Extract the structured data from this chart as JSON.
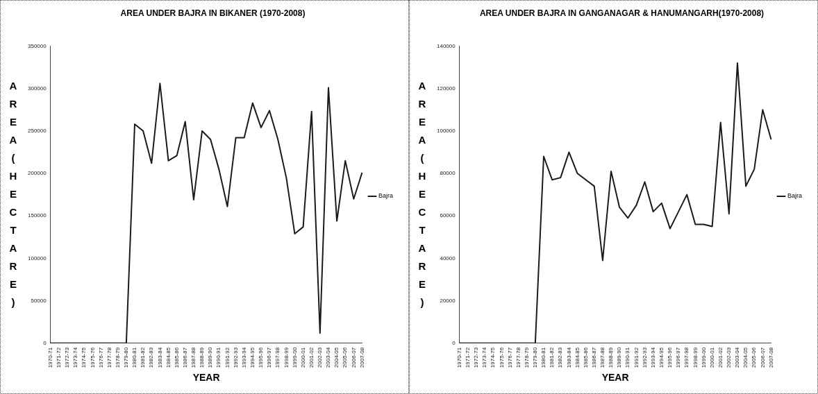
{
  "chart_data": [
    {
      "type": "line",
      "title": "AREA UNDER BAJRA IN BIKANER (1970-2008)",
      "xlabel": "YEAR",
      "ylabel": "AREA(HECTARE)",
      "categories": [
        "1970-71",
        "1971-72",
        "1972-73",
        "1973-74",
        "1974-75",
        "1975-76",
        "1976-77",
        "1977-78",
        "1978-79",
        "1979-80",
        "1980-81",
        "1981-82",
        "1982-83",
        "1983-84",
        "1984-85",
        "1985-86",
        "1986-87",
        "1987-88",
        "1988-89",
        "1989-90",
        "1990-91",
        "1991-92",
        "1992-93",
        "1993-94",
        "1994-95",
        "1995-96",
        "1996-97",
        "1997-98",
        "1998-99",
        "1999-00",
        "2000-01",
        "2001-02",
        "2002-03",
        "2003-04",
        "2004-05",
        "2005-06",
        "2006-07",
        "2007-08"
      ],
      "series": [
        {
          "name": "Bajra",
          "color": "#1a1a1a",
          "values": [
            0,
            0,
            0,
            0,
            0,
            0,
            0,
            0,
            0,
            0,
            258000,
            250000,
            212000,
            306000,
            215000,
            221000,
            261000,
            169000,
            250000,
            240000,
            205000,
            161000,
            242000,
            242000,
            283000,
            254000,
            274000,
            240000,
            195000,
            129000,
            137000,
            273000,
            12000,
            301000,
            144000,
            215000,
            170000,
            201000
          ]
        }
      ],
      "ylim": [
        0,
        350000
      ],
      "yticks": [
        0,
        50000,
        100000,
        150000,
        200000,
        250000,
        300000,
        350000
      ],
      "legend": "right",
      "marker": "none"
    },
    {
      "type": "line",
      "title": "AREA UNDER BAJRA IN GANGANAGAR & HANUMANGARH(1970-2008)",
      "xlabel": "YEAR",
      "ylabel": "AREA(HECTARE)",
      "categories": [
        "1970-71",
        "1971-72",
        "1972-73",
        "1973-74",
        "1974-75",
        "1975-76",
        "1976-77",
        "1977-78",
        "1978-79",
        "1979-80",
        "1980-81",
        "1981-82",
        "1982-83",
        "1983-84",
        "1984-85",
        "1985-86",
        "1986-87",
        "1987-88",
        "1988-89",
        "1989-90",
        "1990-91",
        "1991-92",
        "1992-93",
        "1993-94",
        "1994-95",
        "1995-96",
        "1996-97",
        "1997-98",
        "1998-99",
        "1999-00",
        "2000-01",
        "2001-02",
        "2002-03",
        "2003-04",
        "2004-05",
        "2005-06",
        "2006-07",
        "2007-08"
      ],
      "series": [
        {
          "name": "Bajra",
          "color": "#1a1a1a",
          "values": [
            0,
            0,
            0,
            0,
            0,
            0,
            0,
            0,
            0,
            0,
            88000,
            77000,
            78000,
            90000,
            80000,
            77000,
            74000,
            39000,
            81000,
            64000,
            59000,
            65000,
            76000,
            62000,
            66000,
            54000,
            62000,
            70000,
            56000,
            56000,
            55000,
            104000,
            61000,
            132000,
            74000,
            82000,
            110000,
            96000
          ]
        }
      ],
      "ylim": [
        0,
        140000
      ],
      "yticks": [
        0,
        20000,
        40000,
        60000,
        80000,
        100000,
        120000,
        140000
      ],
      "legend": "right",
      "marker": "none"
    }
  ]
}
